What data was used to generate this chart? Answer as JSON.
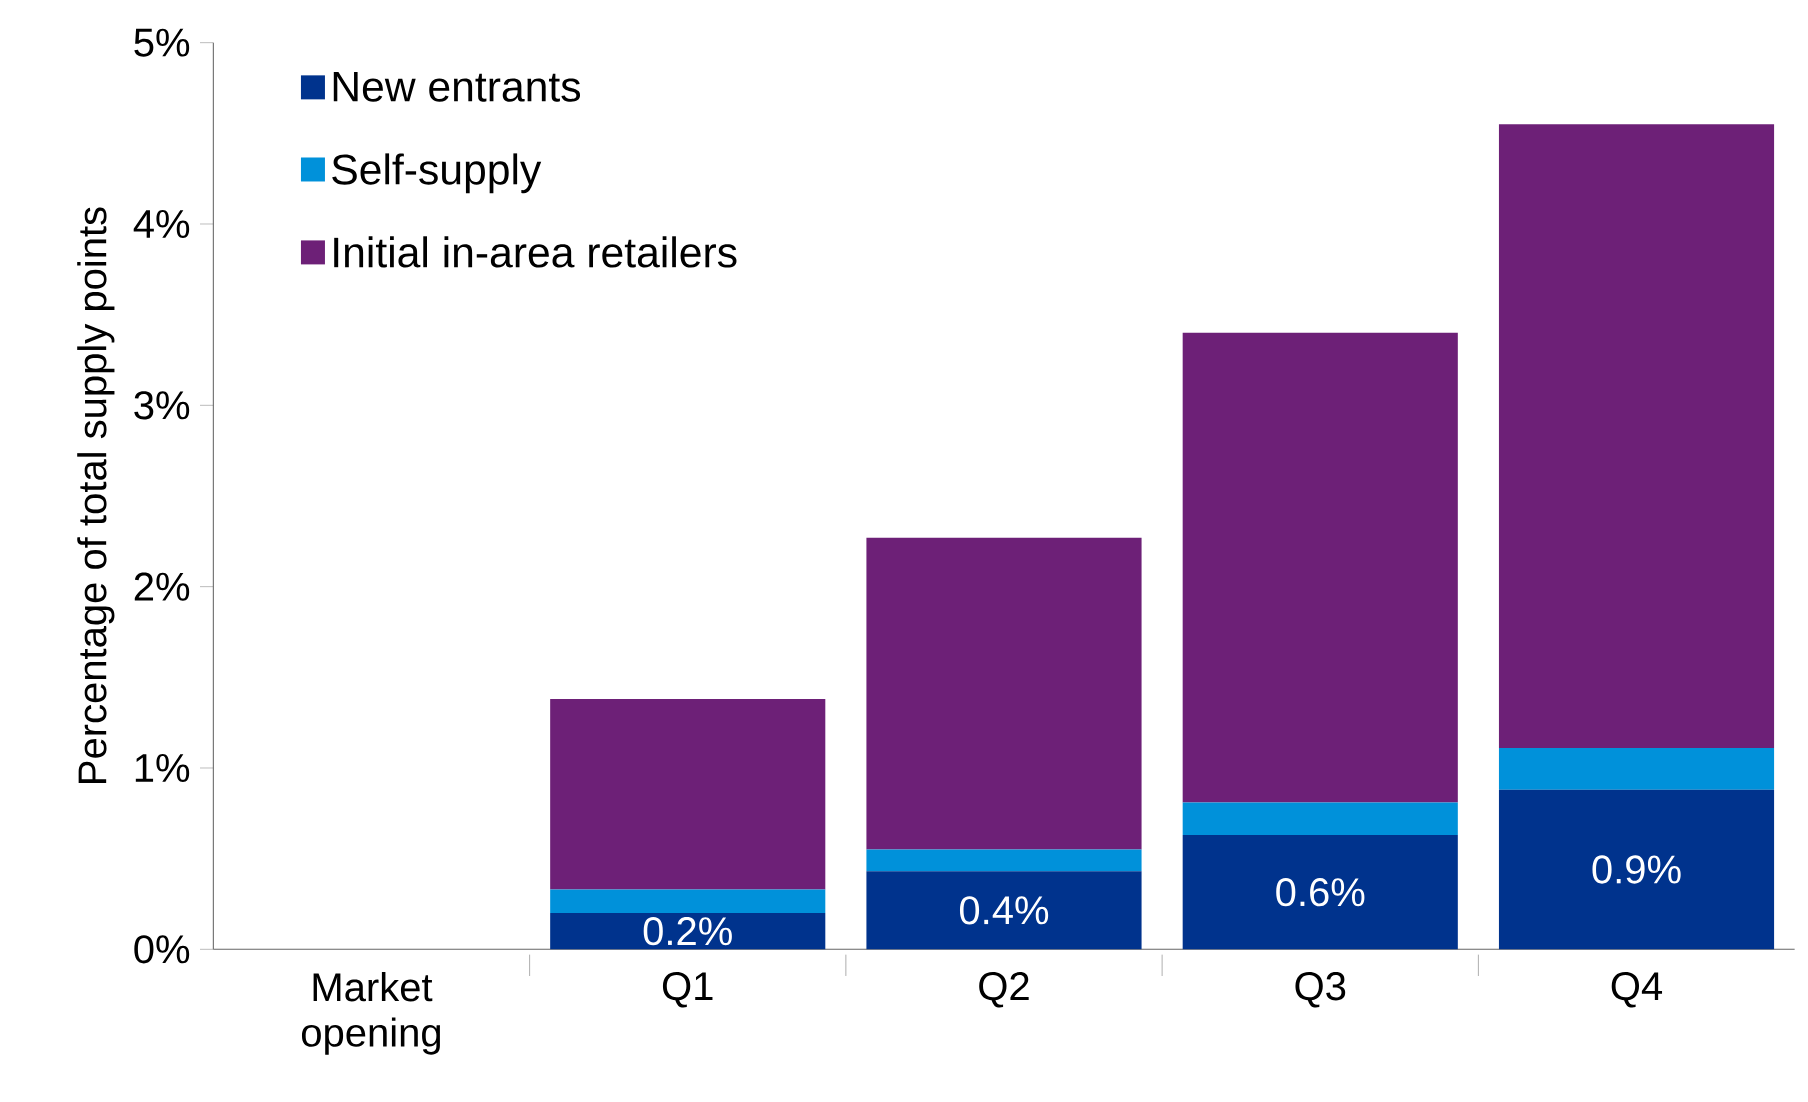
{
  "chart_data": {
    "type": "bar",
    "stacked": true,
    "ylabel": "Percentage of total supply points",
    "categories": [
      "Market opening",
      "Q1",
      "Q2",
      "Q3",
      "Q4"
    ],
    "series": [
      {
        "name": "New entrants",
        "color": "#00338d",
        "values": [
          null,
          0.2,
          0.43,
          0.63,
          0.88
        ],
        "value_labels": [
          null,
          "0.2%",
          "0.4%",
          "0.6%",
          "0.9%"
        ]
      },
      {
        "name": "Self-supply",
        "color": "#0091da",
        "values": [
          null,
          0.13,
          0.12,
          0.18,
          0.23
        ]
      },
      {
        "name": "Initial in-area retailers",
        "color": "#6d2077",
        "values": [
          null,
          1.05,
          1.72,
          2.59,
          3.44
        ]
      }
    ],
    "ylim": [
      0,
      5
    ],
    "yticks": [
      {
        "value": 0,
        "label": "0%"
      },
      {
        "value": 1,
        "label": "1%"
      },
      {
        "value": 2,
        "label": "2%"
      },
      {
        "value": 3,
        "label": "3%"
      },
      {
        "value": 4,
        "label": "4%"
      },
      {
        "value": 5,
        "label": "5%"
      }
    ],
    "grid": false,
    "legend": "top left"
  }
}
